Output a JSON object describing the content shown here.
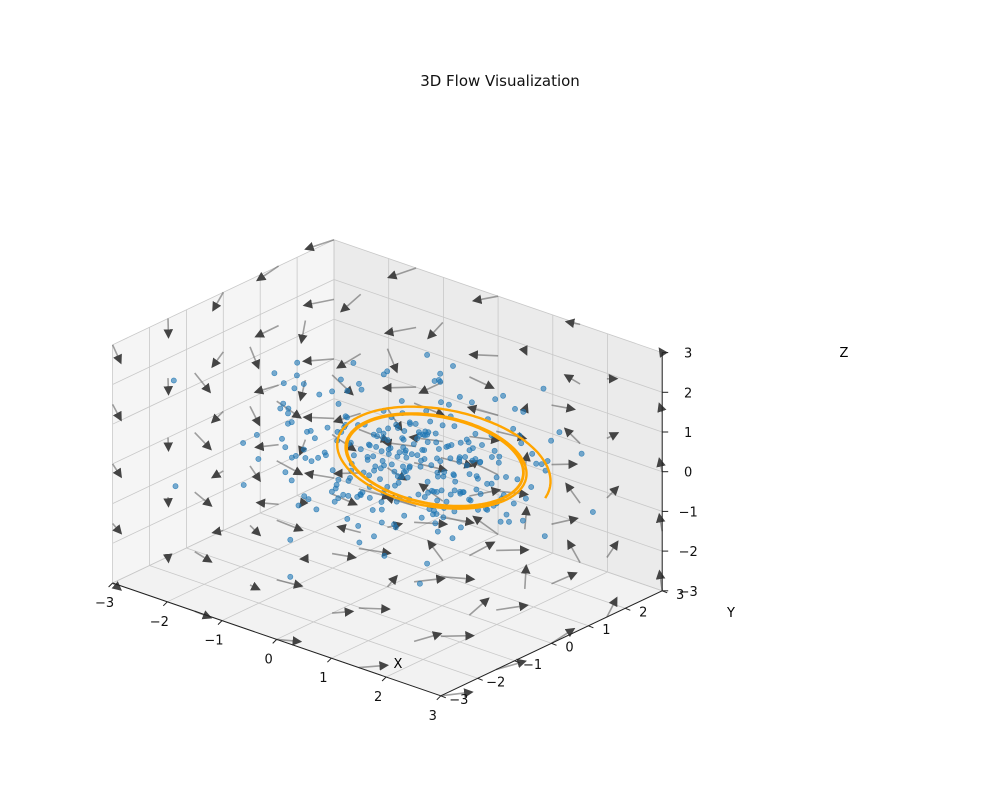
{
  "chart_data": {
    "type": "scatter",
    "title": "3D Flow Visualization",
    "xlabel": "X",
    "ylabel": "Y",
    "zlabel": "Z",
    "xlim": [
      -3,
      3
    ],
    "ylim": [
      -3,
      3
    ],
    "zlim": [
      -3,
      3
    ],
    "xticks": [
      "−3",
      "−2",
      "−1",
      "0",
      "1",
      "2",
      "3"
    ],
    "yticks": [
      "−3",
      "−2",
      "−1",
      "0",
      "1",
      "2",
      "3"
    ],
    "zticks": [
      "−3",
      "−2",
      "−1",
      "0",
      "1",
      "2",
      "3"
    ],
    "grid": true,
    "colors": {
      "scatter": "#1f77b4",
      "trajectory": "#ffa500",
      "quiver": "#555555",
      "pane_back": "#ebebeb",
      "pane_floor": "#f2f2f2",
      "grid": "#c8c8c8"
    },
    "layers": [
      "quiver vector field (gray arrows)",
      "random scatter points (blue)",
      "limit-cycle trajectory (orange)"
    ],
    "trajectory": {
      "description": "spiral converging to a tilted elliptical limit cycle",
      "center": [
        0.6,
        0.4,
        0.3
      ],
      "radius_start": 1.55,
      "radius_cycle": 1.15,
      "tilt_deg": 30
    },
    "scatter_points": {
      "count": 300,
      "center": [
        0.2,
        0.2,
        0.2
      ],
      "spread": 1.0
    },
    "quiver": {
      "grid": [
        -3,
        -1.5,
        0,
        1.5,
        3
      ],
      "length": 0.5
    }
  }
}
